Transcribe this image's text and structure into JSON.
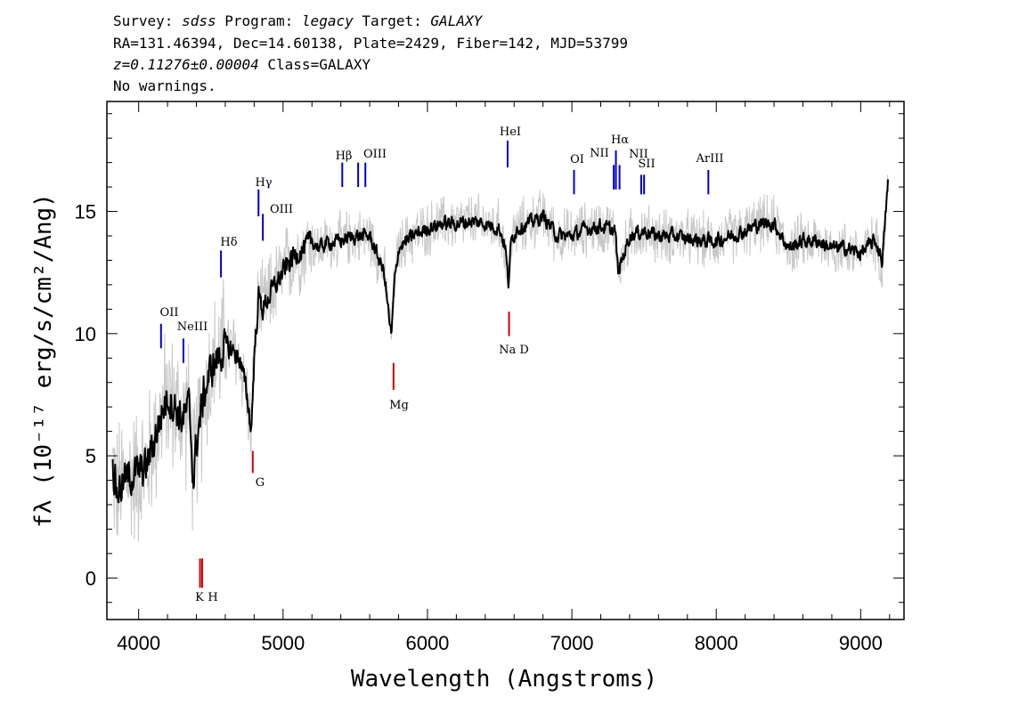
{
  "header": {
    "line1": [
      {
        "t": "Survey: ",
        "i": false
      },
      {
        "t": "sdss",
        "i": true
      },
      {
        "t": " Program: ",
        "i": false
      },
      {
        "t": "legacy",
        "i": true
      },
      {
        "t": " Target: ",
        "i": false
      },
      {
        "t": "GALAXY",
        "i": true
      }
    ],
    "line2": "RA=131.46394, Dec=14.60138, Plate=2429, Fiber=142, MJD=53799",
    "line3": [
      {
        "t": "z=0.11276±0.00004",
        "i": true
      },
      {
        "t": " Class=GALAXY",
        "i": false
      }
    ],
    "line4": "No warnings."
  },
  "chart_data": {
    "type": "line",
    "xlabel": "Wavelength (Angstroms)",
    "ylabel": "fλ (10⁻¹⁷ erg/s/cm²/Ang)",
    "xlim": [
      3780,
      9300
    ],
    "ylim": [
      -1.7,
      19.5
    ],
    "xticks": [
      4000,
      5000,
      6000,
      7000,
      8000,
      9000
    ],
    "yticks": [
      0,
      5,
      10,
      15
    ],
    "colors": {
      "flux": "#000000",
      "noise": "#c8c8c8",
      "emission": "#0000cc",
      "absorption": "#cc0000"
    },
    "flux_series_anchors": {
      "x": [
        3820,
        3850,
        3900,
        3950,
        4000,
        4050,
        4100,
        4150,
        4200,
        4250,
        4300,
        4350,
        4380,
        4400,
        4450,
        4500,
        4550,
        4600,
        4650,
        4700,
        4750,
        4780,
        4800,
        4830,
        4860,
        4900,
        4950,
        5000,
        5050,
        5100,
        5150,
        5200,
        5250,
        5300,
        5400,
        5500,
        5600,
        5700,
        5750,
        5770,
        5800,
        5900,
        6000,
        6100,
        6200,
        6300,
        6400,
        6500,
        6540,
        6560,
        6580,
        6620,
        6700,
        6800,
        6900,
        7000,
        7100,
        7200,
        7300,
        7320,
        7400,
        7500,
        7600,
        7700,
        7800,
        7900,
        8000,
        8100,
        8200,
        8300,
        8400,
        8500,
        8600,
        8700,
        8800,
        8900,
        9000,
        9100,
        9150,
        9190
      ],
      "y": [
        4.5,
        3.5,
        4.0,
        4.2,
        4.3,
        4.5,
        5.5,
        6.5,
        7.5,
        7.0,
        6.5,
        7.0,
        4.0,
        5.5,
        7.5,
        8.5,
        9.0,
        9.5,
        9.3,
        9.0,
        7.5,
        6.0,
        9.0,
        11.5,
        11.0,
        11.5,
        12.0,
        12.5,
        13.0,
        13.3,
        13.5,
        13.8,
        13.5,
        13.7,
        13.8,
        14.0,
        14.0,
        12.5,
        9.8,
        12.0,
        13.5,
        14.0,
        14.3,
        14.5,
        14.5,
        14.6,
        14.5,
        14.3,
        13.5,
        12.0,
        13.8,
        14.3,
        14.5,
        14.8,
        14.0,
        14.0,
        14.3,
        14.4,
        14.2,
        12.5,
        14.0,
        14.2,
        14.0,
        14.0,
        13.9,
        13.8,
        13.8,
        14.0,
        14.2,
        14.5,
        14.5,
        13.5,
        13.8,
        13.8,
        13.5,
        13.5,
        13.3,
        13.8,
        13.0,
        16.3
      ]
    },
    "emission_lines": [
      {
        "label": "OII",
        "x": 4155,
        "y0": 10.4,
        "y1": 9.4
      },
      {
        "label": "NeIII",
        "x": 4310,
        "y0": 9.8,
        "y1": 8.8
      },
      {
        "label": "Hδ",
        "x": 4570,
        "y0": 13.4,
        "y1": 12.3
      },
      {
        "label": "Hγ",
        "x": 4830,
        "y0": 15.9,
        "y1": 14.8
      },
      {
        "label": "OIII",
        "x": 4860,
        "y0": 14.9,
        "y1": 13.8
      },
      {
        "label": "Hβ",
        "x": 5410,
        "y0": 17.0,
        "y1": 16.0
      },
      {
        "label": "OIII",
        "x": 5520,
        "y0": 17.0,
        "y1": 16.0
      },
      {
        "label": "OIII",
        "x": 5570,
        "y0": 17.0,
        "y1": 16.0
      },
      {
        "label": "HeI",
        "x": 6555,
        "y0": 17.9,
        "y1": 16.8
      },
      {
        "label": "OI",
        "x": 7015,
        "y0": 16.7,
        "y1": 15.7
      },
      {
        "label": "NII",
        "x": 7290,
        "y0": 16.9,
        "y1": 15.9
      },
      {
        "label": "Hα",
        "x": 7305,
        "y0": 17.5,
        "y1": 15.9
      },
      {
        "label": "NII",
        "x": 7330,
        "y0": 16.9,
        "y1": 15.9
      },
      {
        "label": "SII",
        "x": 7480,
        "y0": 16.5,
        "y1": 15.7
      },
      {
        "label": "SII",
        "x": 7500,
        "y0": 16.5,
        "y1": 15.7
      },
      {
        "label": "ArIII",
        "x": 7945,
        "y0": 16.7,
        "y1": 15.7
      }
    ],
    "absorption_lines": [
      {
        "label": "K",
        "x": 4425,
        "y0": 0.8,
        "y1": -0.4
      },
      {
        "label": "H",
        "x": 4440,
        "y0": 0.8,
        "y1": -0.4
      },
      {
        "label": "G",
        "x": 4790,
        "y0": 5.2,
        "y1": 4.3
      },
      {
        "label": "Mg",
        "x": 5765,
        "y0": 8.8,
        "y1": 7.7
      },
      {
        "label": "Na D",
        "x": 6565,
        "y0": 10.9,
        "y1": 9.9
      }
    ]
  }
}
